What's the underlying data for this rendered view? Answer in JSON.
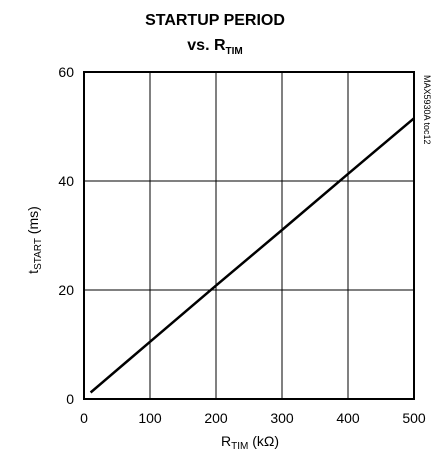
{
  "chart_data": {
    "type": "line",
    "title_line1": "STARTUP PERIOD",
    "title_line2_prefix": "vs. R",
    "title_line2_sub": "TIM",
    "xlabel_main": "R",
    "xlabel_sub": "TIM",
    "xlabel_unit": " (kΩ)",
    "ylabel_main": "t",
    "ylabel_sub": "START",
    "ylabel_unit": " (ms)",
    "side_note": "MAX5930A toc12",
    "xlim": [
      0,
      500
    ],
    "ylim": [
      0,
      60
    ],
    "xticks": [
      0,
      100,
      200,
      300,
      400,
      500
    ],
    "yticks": [
      0,
      20,
      40,
      60
    ],
    "grid": true,
    "series": [
      {
        "x": [
          10,
          100,
          200,
          300,
          400,
          500
        ],
        "y": [
          1.2,
          10.5,
          20.8,
          31.0,
          41.3,
          51.5
        ]
      }
    ]
  }
}
